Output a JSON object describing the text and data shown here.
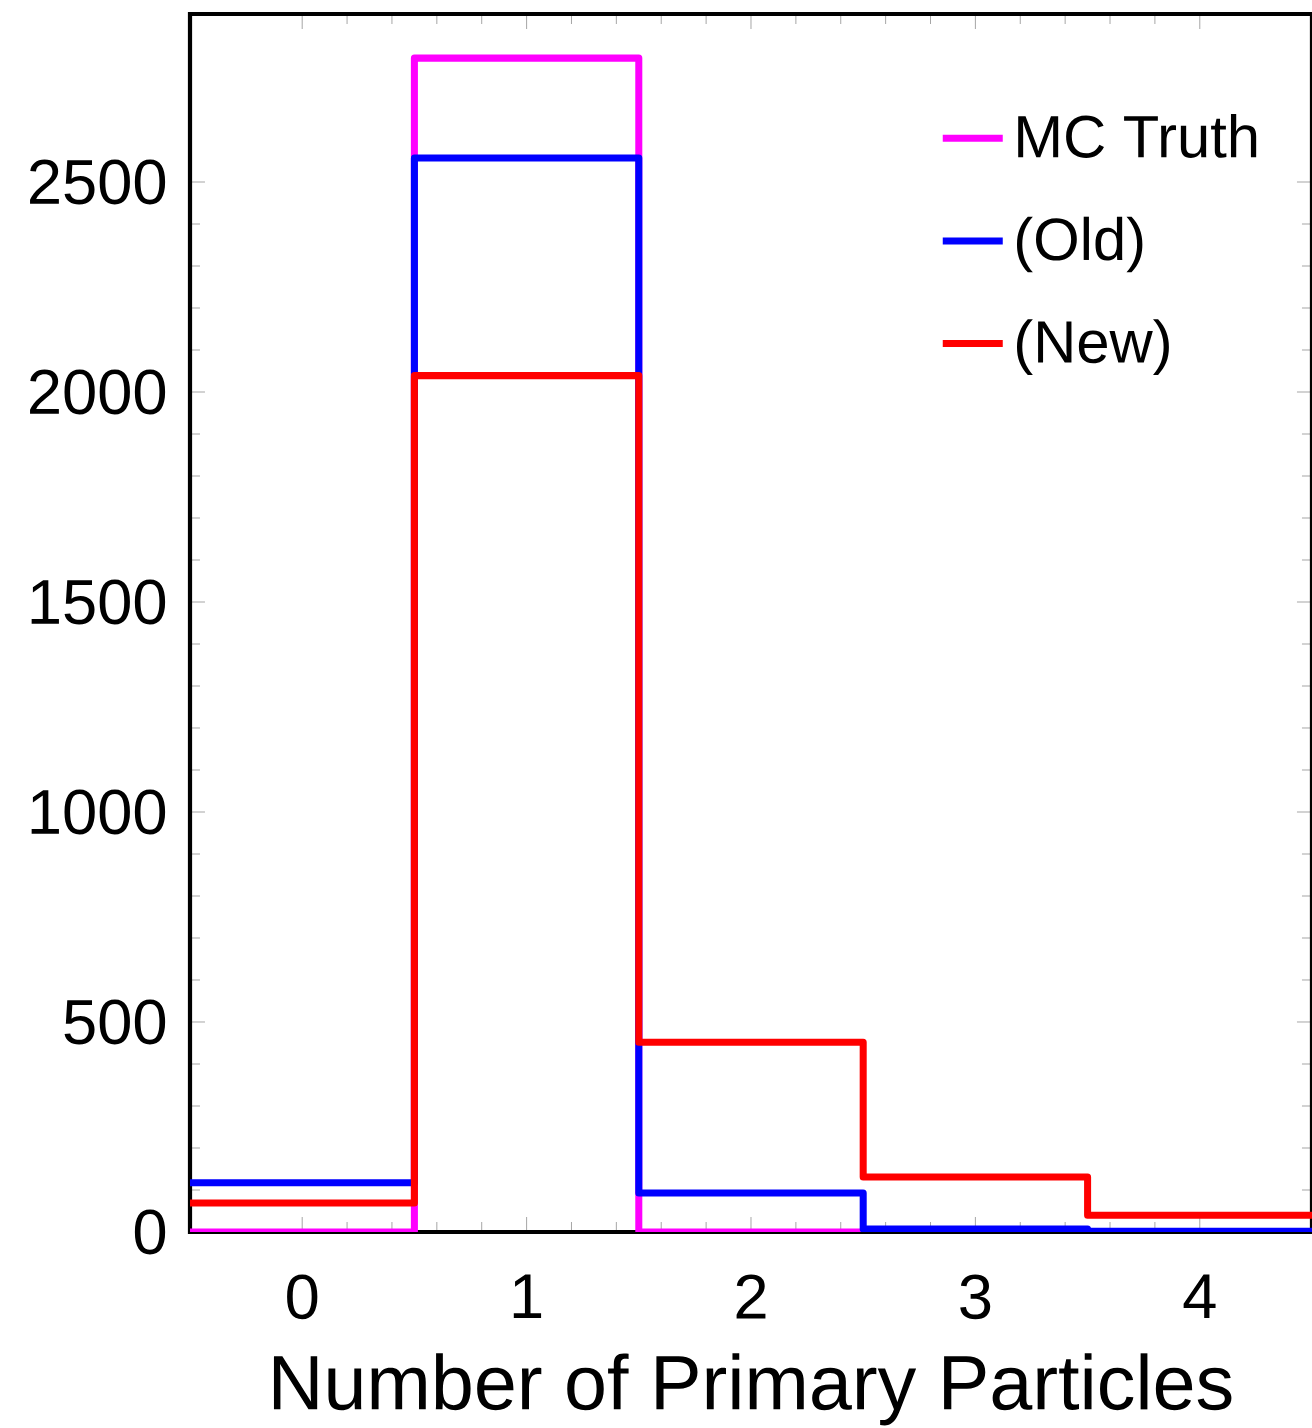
{
  "chart_data": {
    "type": "histogram",
    "xlabel": "Number of Primary Particles",
    "bins": [
      -0.5,
      0.5,
      1.5,
      2.5,
      3.5,
      4.5
    ],
    "xlim": [
      -0.5,
      4.5
    ],
    "xticks": [
      0,
      1,
      2,
      3,
      4
    ],
    "ylim": [
      0,
      2900
    ],
    "yticks": [
      0,
      500,
      1000,
      1500,
      2000,
      2500
    ],
    "legend": "top right",
    "grid": false,
    "series": [
      {
        "name": "MC Truth",
        "color": "#ff00ff",
        "values": [
          0,
          2795,
          0,
          0,
          0
        ]
      },
      {
        "name": "(Old)",
        "color": "#0000ff",
        "values": [
          117,
          2557,
          93,
          7,
          2
        ]
      },
      {
        "name": "(New)",
        "color": "#ff0000",
        "values": [
          69,
          2039,
          452,
          131,
          40
        ]
      }
    ]
  }
}
